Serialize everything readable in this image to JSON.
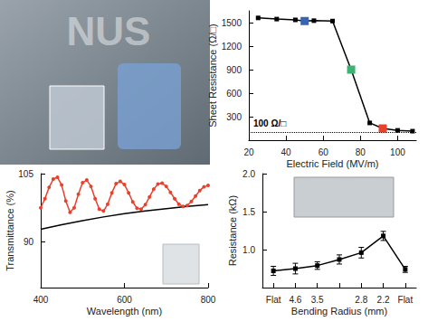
{
  "photo": {
    "text": "NUS"
  },
  "chart_data": [
    {
      "type": "line",
      "x_label": "Electric Field (MV/m)",
      "y_label": "Sheet Resistance (Ω/□)",
      "xlim": [
        20,
        110
      ],
      "xticks": [
        20,
        40,
        60,
        80,
        100
      ],
      "ylim": [
        0,
        1650
      ],
      "yticks": [
        300,
        600,
        900,
        1200,
        1500
      ],
      "grid": false,
      "series": [
        {
          "color": "#000000",
          "marker": "square",
          "x": [
            25,
            35,
            45,
            50,
            55,
            65,
            75,
            85,
            92,
            100,
            108
          ],
          "values": [
            1560,
            1545,
            1535,
            1520,
            1525,
            1520,
            900,
            220,
            150,
            125,
            115
          ],
          "colors": [
            "#000000",
            "#000000",
            "#000000",
            "#3a64b0",
            "#000000",
            "#000000",
            "#3cb371",
            "#000000",
            "#e8412c",
            "#000000",
            "#000000"
          ]
        }
      ],
      "annotations": [
        {
          "text": "100 Ω/□",
          "y": 100
        }
      ]
    },
    {
      "type": "line",
      "x_label": "Wavelength (nm)",
      "y_label": "Transmittance (%)",
      "xlim": [
        400,
        800
      ],
      "xticks": [
        400,
        600,
        800
      ],
      "ylim": [
        80,
        105
      ],
      "yticks": [
        90,
        105
      ],
      "grid": false,
      "series": [
        {
          "color": "#e8412c",
          "marker": "circle",
          "x": [
            400,
            410,
            420,
            430,
            440,
            450,
            460,
            470,
            480,
            490,
            500,
            510,
            520,
            530,
            540,
            550,
            560,
            570,
            580,
            590,
            600,
            610,
            620,
            630,
            640,
            650,
            660,
            670,
            680,
            690,
            700,
            710,
            720,
            730,
            740,
            750,
            760,
            770,
            780,
            790,
            800
          ],
          "values": [
            97.5,
            99.5,
            102,
            103.8,
            104.2,
            102.5,
            99,
            96.5,
            97.5,
            100.5,
            103,
            103.6,
            102.2,
            99.5,
            97.2,
            96.8,
            98.3,
            100.8,
            102.8,
            103.3,
            102.6,
            100.8,
            98.8,
            97.4,
            97.2,
            98.2,
            99.9,
            101.6,
            102.7,
            102.9,
            102.2,
            100.9,
            99.5,
            98.3,
            97.8,
            98.0,
            98.9,
            100.1,
            101.3,
            102.1,
            102.4
          ]
        },
        {
          "color": "#000000",
          "marker": "none",
          "x": [
            400,
            450,
            500,
            550,
            600,
            650,
            700,
            750,
            800
          ],
          "values": [
            92.8,
            93.8,
            94.7,
            95.5,
            96.2,
            96.8,
            97.3,
            97.8,
            98.2
          ]
        }
      ]
    },
    {
      "type": "line",
      "x_label": "Bending Radius (mm)",
      "y_label": "Resistance (kΩ)",
      "categories": [
        "Flat",
        "4.6",
        "3.5",
        null,
        "2.8",
        "2.2",
        "Flat"
      ],
      "ylim": [
        0.5,
        2.0
      ],
      "yticks": [
        {
          "value": 1.0,
          "label": "1.0"
        },
        {
          "value": 1.5,
          "label": "1.5"
        },
        {
          "value": 2.0,
          "label": "2.0"
        }
      ],
      "grid": false,
      "series": [
        {
          "color": "#000000",
          "marker": "square",
          "values": [
            0.72,
            0.75,
            0.79,
            0.87,
            0.96,
            1.18,
            0.74
          ],
          "errors": [
            0.06,
            0.07,
            0.05,
            0.06,
            0.07,
            0.06,
            0.04
          ]
        }
      ]
    }
  ]
}
